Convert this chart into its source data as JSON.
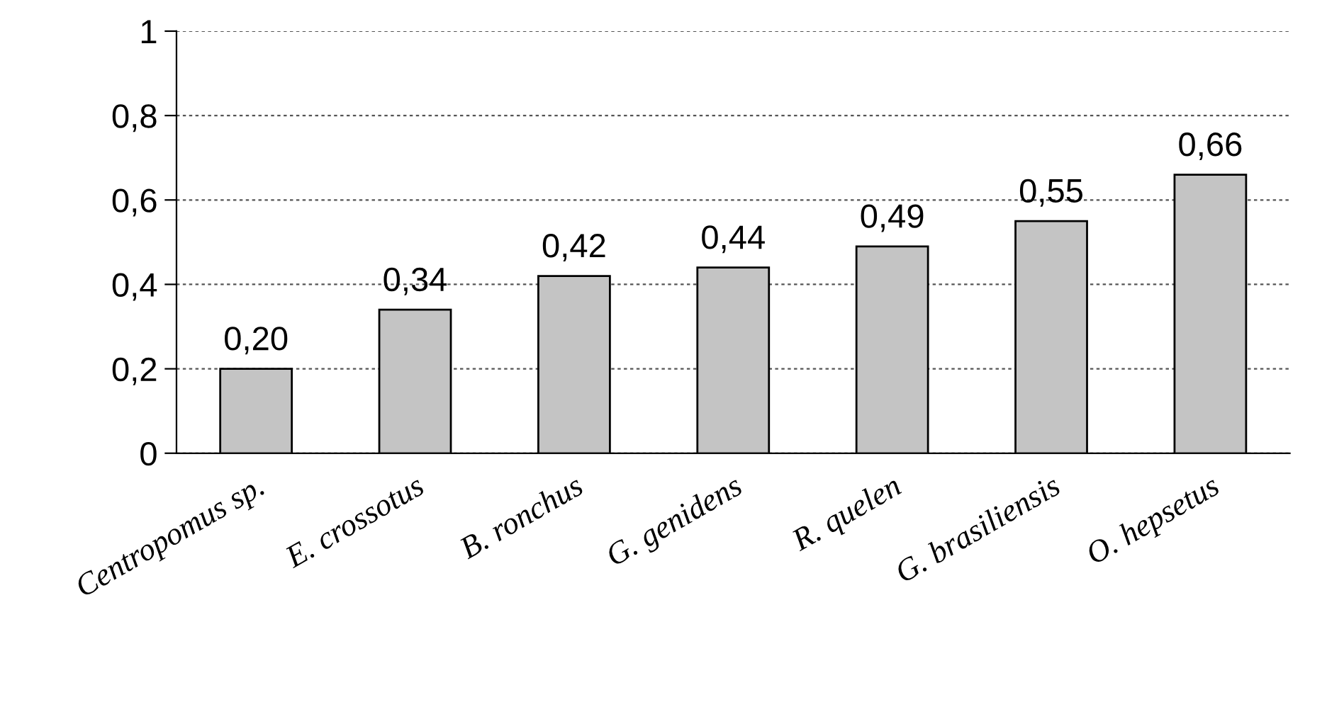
{
  "chart_data": {
    "type": "bar",
    "categories": [
      "Centropomus sp.",
      "E. crossotus",
      "B. ronchus",
      "G. genidens",
      "R. quelen",
      "G. brasiliensis",
      "O. hepsetus"
    ],
    "values": [
      0.2,
      0.34,
      0.42,
      0.44,
      0.49,
      0.55,
      0.66
    ],
    "value_labels": [
      "0,20",
      "0,34",
      "0,42",
      "0,44",
      "0,49",
      "0,55",
      "0,66"
    ],
    "color": "#c4c4c4",
    "ylim": [
      0,
      1
    ],
    "yticks": [
      0,
      {
        "value": 0.2,
        "label": "0,2"
      },
      {
        "value": 0.4,
        "label": "0,4"
      },
      {
        "value": 0.6,
        "label": "0,6"
      },
      {
        "value": 0.8,
        "label": "0,8"
      },
      1
    ],
    "grid": "y",
    "legend": false
  }
}
